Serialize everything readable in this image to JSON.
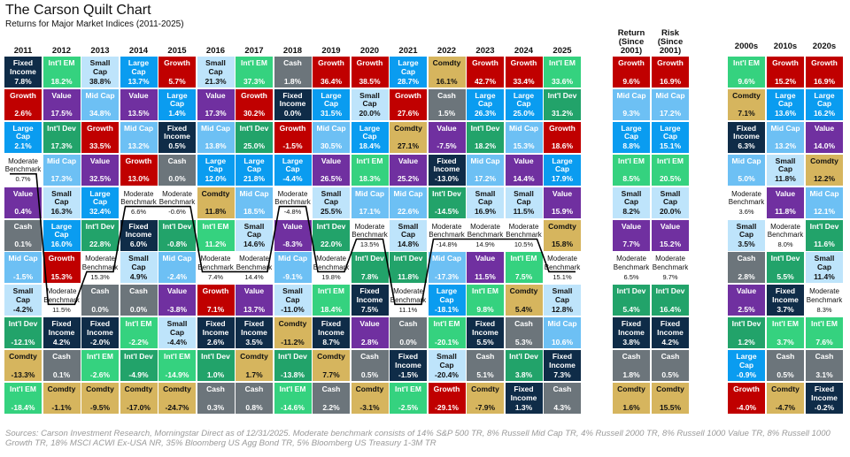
{
  "header": {
    "title": "The Carson Quilt Chart",
    "subtitle": "Returns for Major Market Indices (2011-2025)"
  },
  "colors": {
    "Growth": "#c00000",
    "Int'l EM": "#35d27f",
    "Int'l Dev": "#22a36a",
    "Value": "#7030a0",
    "Large Cap": "#0a9cf0",
    "Mid Cap": "#6dc0f4",
    "Small Cap": "#bee4fb",
    "Fixed Income": "#0f2c48",
    "Cash": "#6c757b",
    "Comdty": "#d6b55e",
    "Moderate Benchmark": "#ffffff"
  },
  "dark_text": [
    "Small Cap",
    "Comdty",
    "Moderate Benchmark"
  ],
  "chart_data": {
    "type": "table",
    "title": "The Carson Quilt Chart",
    "subtitle": "Returns for Major Market Indices (2011-2025)",
    "years": [
      {
        "label": "2011",
        "cells": [
          [
            "Fixed Income",
            "7.8%"
          ],
          [
            "Growth",
            "2.6%"
          ],
          [
            "Large Cap",
            "2.1%"
          ],
          [
            "Moderate Benchmark",
            "0.7%"
          ],
          [
            "Value",
            "0.4%"
          ],
          [
            "Cash",
            "0.1%"
          ],
          [
            "Mid Cap",
            "-1.5%"
          ],
          [
            "Small Cap",
            "-4.2%"
          ],
          [
            "Int'l Dev",
            "-12.1%"
          ],
          [
            "Comdty",
            "-13.3%"
          ],
          [
            "Int'l EM",
            "-18.4%"
          ]
        ]
      },
      {
        "label": "2012",
        "cells": [
          [
            "Int'l EM",
            "18.2%"
          ],
          [
            "Value",
            "17.5%"
          ],
          [
            "Int'l Dev",
            "17.3%"
          ],
          [
            "Mid Cap",
            "17.3%"
          ],
          [
            "Small Cap",
            "16.3%"
          ],
          [
            "Large Cap",
            "16.0%"
          ],
          [
            "Growth",
            "15.3%"
          ],
          [
            "Moderate Benchmark",
            "11.5%"
          ],
          [
            "Fixed Income",
            "4.2%"
          ],
          [
            "Cash",
            "0.1%"
          ],
          [
            "Comdty",
            "-1.1%"
          ]
        ]
      },
      {
        "label": "2013",
        "cells": [
          [
            "Small Cap",
            "38.8%"
          ],
          [
            "Mid Cap",
            "34.8%"
          ],
          [
            "Growth",
            "33.5%"
          ],
          [
            "Value",
            "32.5%"
          ],
          [
            "Large Cap",
            "32.4%"
          ],
          [
            "Int'l Dev",
            "22.8%"
          ],
          [
            "Moderate Benchmark",
            "15.3%"
          ],
          [
            "Cash",
            "0.0%"
          ],
          [
            "Fixed Income",
            "-2.0%"
          ],
          [
            "Int'l EM",
            "-2.6%"
          ],
          [
            "Comdty",
            "-9.5%"
          ]
        ]
      },
      {
        "label": "2014",
        "cells": [
          [
            "Large Cap",
            "13.7%"
          ],
          [
            "Value",
            "13.5%"
          ],
          [
            "Mid Cap",
            "13.2%"
          ],
          [
            "Growth",
            "13.0%"
          ],
          [
            "Moderate Benchmark",
            "6.6%"
          ],
          [
            "Fixed Income",
            "6.0%"
          ],
          [
            "Small Cap",
            "4.9%"
          ],
          [
            "Cash",
            "0.0%"
          ],
          [
            "Int'l EM",
            "-2.2%"
          ],
          [
            "Int'l Dev",
            "-4.9%"
          ],
          [
            "Comdty",
            "-17.0%"
          ]
        ]
      },
      {
        "label": "2015",
        "cells": [
          [
            "Growth",
            "5.7%"
          ],
          [
            "Large Cap",
            "1.4%"
          ],
          [
            "Fixed Income",
            "0.5%"
          ],
          [
            "Cash",
            "0.0%"
          ],
          [
            "Moderate Benchmark",
            "-0.6%"
          ],
          [
            "Int'l Dev",
            "-0.8%"
          ],
          [
            "Mid Cap",
            "-2.4%"
          ],
          [
            "Value",
            "-3.8%"
          ],
          [
            "Small Cap",
            "-4.4%"
          ],
          [
            "Int'l EM",
            "-14.9%"
          ],
          [
            "Comdty",
            "-24.7%"
          ]
        ]
      },
      {
        "label": "2016",
        "cells": [
          [
            "Small Cap",
            "21.3%"
          ],
          [
            "Value",
            "17.3%"
          ],
          [
            "Mid Cap",
            "13.8%"
          ],
          [
            "Large Cap",
            "12.0%"
          ],
          [
            "Comdty",
            "11.8%"
          ],
          [
            "Int'l EM",
            "11.2%"
          ],
          [
            "Moderate Benchmark",
            "7.4%"
          ],
          [
            "Growth",
            "7.1%"
          ],
          [
            "Fixed Income",
            "2.6%"
          ],
          [
            "Int'l Dev",
            "1.0%"
          ],
          [
            "Cash",
            "0.3%"
          ]
        ]
      },
      {
        "label": "2017",
        "cells": [
          [
            "Int'l EM",
            "37.3%"
          ],
          [
            "Growth",
            "30.2%"
          ],
          [
            "Int'l Dev",
            "25.0%"
          ],
          [
            "Large Cap",
            "21.8%"
          ],
          [
            "Mid Cap",
            "18.5%"
          ],
          [
            "Small Cap",
            "14.6%"
          ],
          [
            "Moderate Benchmark",
            "14.4%"
          ],
          [
            "Value",
            "13.7%"
          ],
          [
            "Fixed Income",
            "3.5%"
          ],
          [
            "Comdty",
            "1.7%"
          ],
          [
            "Cash",
            "0.8%"
          ]
        ]
      },
      {
        "label": "2018",
        "cells": [
          [
            "Cash",
            "1.8%"
          ],
          [
            "Fixed Income",
            "0.0%"
          ],
          [
            "Growth",
            "-1.5%"
          ],
          [
            "Large Cap",
            "-4.4%"
          ],
          [
            "Moderate Benchmark",
            "-4.8%"
          ],
          [
            "Value",
            "-8.3%"
          ],
          [
            "Mid Cap",
            "-9.1%"
          ],
          [
            "Small Cap",
            "-11.0%"
          ],
          [
            "Comdty",
            "-11.2%"
          ],
          [
            "Int'l Dev",
            "-13.8%"
          ],
          [
            "Int'l EM",
            "-14.6%"
          ]
        ]
      },
      {
        "label": "2019",
        "cells": [
          [
            "Growth",
            "36.4%"
          ],
          [
            "Large Cap",
            "31.5%"
          ],
          [
            "Mid Cap",
            "30.5%"
          ],
          [
            "Value",
            "26.5%"
          ],
          [
            "Small Cap",
            "25.5%"
          ],
          [
            "Int'l Dev",
            "22.0%"
          ],
          [
            "Moderate Benchmark",
            "19.8%"
          ],
          [
            "Int'l EM",
            "18.4%"
          ],
          [
            "Fixed Income",
            "8.7%"
          ],
          [
            "Comdty",
            "7.7%"
          ],
          [
            "Cash",
            "2.2%"
          ]
        ]
      },
      {
        "label": "2020",
        "cells": [
          [
            "Growth",
            "38.5%"
          ],
          [
            "Small Cap",
            "20.0%"
          ],
          [
            "Large Cap",
            "18.4%"
          ],
          [
            "Int'l EM",
            "18.3%"
          ],
          [
            "Mid Cap",
            "17.1%"
          ],
          [
            "Moderate Benchmark",
            "13.5%"
          ],
          [
            "Int'l Dev",
            "7.8%"
          ],
          [
            "Fixed Income",
            "7.5%"
          ],
          [
            "Value",
            "2.8%"
          ],
          [
            "Cash",
            "0.5%"
          ],
          [
            "Comdty",
            "-3.1%"
          ]
        ]
      },
      {
        "label": "2021",
        "cells": [
          [
            "Large Cap",
            "28.7%"
          ],
          [
            "Growth",
            "27.6%"
          ],
          [
            "Comdty",
            "27.1%"
          ],
          [
            "Value",
            "25.2%"
          ],
          [
            "Mid Cap",
            "22.6%"
          ],
          [
            "Small Cap",
            "14.8%"
          ],
          [
            "Int'l Dev",
            "11.8%"
          ],
          [
            "Moderate Benchmark",
            "11.1%"
          ],
          [
            "Cash",
            "0.0%"
          ],
          [
            "Fixed Income",
            "-1.5%"
          ],
          [
            "Int'l EM",
            "-2.5%"
          ]
        ]
      },
      {
        "label": "2022",
        "cells": [
          [
            "Comdty",
            "16.1%"
          ],
          [
            "Cash",
            "1.5%"
          ],
          [
            "Value",
            "-7.5%"
          ],
          [
            "Fixed Income",
            "-13.0%"
          ],
          [
            "Int'l Dev",
            "-14.5%"
          ],
          [
            "Moderate Benchmark",
            "-14.8%"
          ],
          [
            "Mid Cap",
            "-17.3%"
          ],
          [
            "Large Cap",
            "-18.1%"
          ],
          [
            "Int'l EM",
            "-20.1%"
          ],
          [
            "Small Cap",
            "-20.4%"
          ],
          [
            "Growth",
            "-29.1%"
          ]
        ]
      },
      {
        "label": "2023",
        "cells": [
          [
            "Growth",
            "42.7%"
          ],
          [
            "Large Cap",
            "26.3%"
          ],
          [
            "Int'l Dev",
            "18.2%"
          ],
          [
            "Mid Cap",
            "17.2%"
          ],
          [
            "Small Cap",
            "16.9%"
          ],
          [
            "Moderate Benchmark",
            "14.9%"
          ],
          [
            "Value",
            "11.5%"
          ],
          [
            "Int'l EM",
            "9.8%"
          ],
          [
            "Fixed Income",
            "5.5%"
          ],
          [
            "Cash",
            "5.1%"
          ],
          [
            "Comdty",
            "-7.9%"
          ]
        ]
      },
      {
        "label": "2024",
        "cells": [
          [
            "Growth",
            "33.4%"
          ],
          [
            "Large Cap",
            "25.0%"
          ],
          [
            "Mid Cap",
            "15.3%"
          ],
          [
            "Value",
            "14.4%"
          ],
          [
            "Small Cap",
            "11.5%"
          ],
          [
            "Moderate Benchmark",
            "10.5%"
          ],
          [
            "Int'l EM",
            "7.5%"
          ],
          [
            "Comdty",
            "5.4%"
          ],
          [
            "Cash",
            "5.3%"
          ],
          [
            "Int'l Dev",
            "3.8%"
          ],
          [
            "Fixed Income",
            "1.3%"
          ]
        ]
      },
      {
        "label": "2025",
        "cells": [
          [
            "Int'l EM",
            "33.6%"
          ],
          [
            "Int'l Dev",
            "31.2%"
          ],
          [
            "Growth",
            "18.6%"
          ],
          [
            "Large Cap",
            "17.9%"
          ],
          [
            "Value",
            "15.9%"
          ],
          [
            "Comdty",
            "15.8%"
          ],
          [
            "Moderate Benchmark",
            "15.1%"
          ],
          [
            "Small Cap",
            "12.8%"
          ],
          [
            "Mid Cap",
            "10.6%"
          ],
          [
            "Fixed Income",
            "7.3%"
          ],
          [
            "Cash",
            "4.3%"
          ]
        ]
      }
    ],
    "summary": [
      {
        "label": "Return (Since 2001)",
        "cells": [
          [
            "Growth",
            "9.6%"
          ],
          [
            "Mid Cap",
            "9.3%"
          ],
          [
            "Large Cap",
            "8.8%"
          ],
          [
            "Int'l EM",
            "8.5%"
          ],
          [
            "Small Cap",
            "8.2%"
          ],
          [
            "Value",
            "7.7%"
          ],
          [
            "Moderate Benchmark",
            "6.5%"
          ],
          [
            "Int'l Dev",
            "5.4%"
          ],
          [
            "Fixed Income",
            "3.8%"
          ],
          [
            "Cash",
            "1.8%"
          ],
          [
            "Comdty",
            "1.6%"
          ]
        ]
      },
      {
        "label": "Risk (Since 2001)",
        "cells": [
          [
            "Growth",
            "16.9%"
          ],
          [
            "Mid Cap",
            "17.2%"
          ],
          [
            "Large Cap",
            "15.1%"
          ],
          [
            "Int'l EM",
            "20.5%"
          ],
          [
            "Small Cap",
            "20.0%"
          ],
          [
            "Value",
            "15.2%"
          ],
          [
            "Moderate Benchmark",
            "9.7%"
          ],
          [
            "Int'l Dev",
            "16.4%"
          ],
          [
            "Fixed Income",
            "4.2%"
          ],
          [
            "Cash",
            "0.5%"
          ],
          [
            "Comdty",
            "15.5%"
          ]
        ]
      }
    ],
    "decades": [
      {
        "label": "2000s",
        "cells": [
          [
            "Int'l EM",
            "9.6%"
          ],
          [
            "Comdty",
            "7.1%"
          ],
          [
            "Fixed Income",
            "6.3%"
          ],
          [
            "Mid Cap",
            "5.0%"
          ],
          [
            "Moderate Benchmark",
            "3.6%"
          ],
          [
            "Small Cap",
            "3.5%"
          ],
          [
            "Cash",
            "2.8%"
          ],
          [
            "Value",
            "2.5%"
          ],
          [
            "Int'l Dev",
            "1.2%"
          ],
          [
            "Large Cap",
            "-0.9%"
          ],
          [
            "Growth",
            "-4.0%"
          ]
        ]
      },
      {
        "label": "2010s",
        "cells": [
          [
            "Growth",
            "15.2%"
          ],
          [
            "Large Cap",
            "13.6%"
          ],
          [
            "Mid Cap",
            "13.2%"
          ],
          [
            "Small Cap",
            "11.8%"
          ],
          [
            "Value",
            "11.8%"
          ],
          [
            "Moderate Benchmark",
            "8.0%"
          ],
          [
            "Int'l Dev",
            "5.5%"
          ],
          [
            "Fixed Income",
            "3.7%"
          ],
          [
            "Int'l EM",
            "3.7%"
          ],
          [
            "Cash",
            "0.5%"
          ],
          [
            "Comdty",
            "-4.7%"
          ]
        ]
      },
      {
        "label": "2020s",
        "cells": [
          [
            "Growth",
            "16.9%"
          ],
          [
            "Large Cap",
            "16.2%"
          ],
          [
            "Value",
            "14.0%"
          ],
          [
            "Comdty",
            "12.2%"
          ],
          [
            "Mid Cap",
            "12.1%"
          ],
          [
            "Int'l Dev",
            "11.6%"
          ],
          [
            "Small Cap",
            "11.4%"
          ],
          [
            "Moderate Benchmark",
            "8.3%"
          ],
          [
            "Int'l EM",
            "7.6%"
          ],
          [
            "Cash",
            "3.1%"
          ],
          [
            "Fixed Income",
            "-0.2%"
          ]
        ]
      }
    ]
  },
  "footer": {
    "sources": "Sources: Carson Investment Research, Morningstar Direct as of 12/31/2025. Moderate benchmark consists of 14% S&P 500 TR, 8% Russell Mid Cap TR, 4% Russell 2000 TR, 8% Russell 1000 Value TR, 8% Russell 1000 Growth TR, 18% MSCI ACWI Ex-USA NR, 35% Bloomberg US Agg Bond TR, 5% Bloomberg US Treasury 1-3M TR"
  }
}
